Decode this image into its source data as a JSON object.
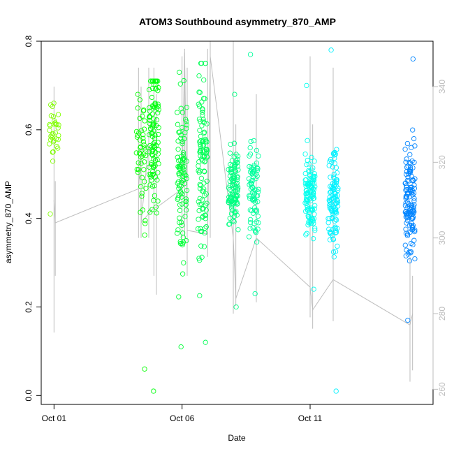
{
  "chart_data": {
    "type": "scatter",
    "title": "ATOM3 Southbound asymmetry_870_AMP",
    "xlabel": "Date",
    "ylabel": "asymmetry_870_AMP",
    "x_ticks": [
      "Oct 01",
      "Oct 06",
      "Oct 11"
    ],
    "x_tick_days": [
      1,
      6,
      11
    ],
    "xlim_days": [
      0.5,
      15.8
    ],
    "ylim": [
      -0.02,
      0.8
    ],
    "y_ticks": [
      0.0,
      0.2,
      0.4,
      0.6,
      0.8
    ],
    "y2_ticks": [
      260,
      280,
      300,
      320,
      340
    ],
    "y2lim": [
      256,
      352
    ],
    "grid": false,
    "legend": "none",
    "colors": {
      "points": [
        "#7fff00",
        "#00ff7f",
        "#00bfff",
        "#0080ff"
      ],
      "secondary_line": "#bebebe",
      "axis": "#000000",
      "right_axis": "#bdbdbd"
    },
    "sessions": [
      {
        "day": 1.0,
        "center": 0.6,
        "spread": 0.05,
        "min": 0.41,
        "max": 0.66,
        "n": 35
      },
      {
        "day": 4.4,
        "center": 0.52,
        "spread": 0.15,
        "min": 0.06,
        "max": 0.68,
        "n": 50
      },
      {
        "day": 4.9,
        "center": 0.58,
        "spread": 0.14,
        "min": 0.01,
        "max": 0.71,
        "n": 110
      },
      {
        "day": 6.0,
        "center": 0.5,
        "spread": 0.18,
        "min": 0.11,
        "max": 0.73,
        "n": 100
      },
      {
        "day": 6.8,
        "center": 0.52,
        "spread": 0.18,
        "min": 0.12,
        "max": 0.75,
        "n": 110
      },
      {
        "day": 8.0,
        "center": 0.48,
        "spread": 0.08,
        "min": 0.2,
        "max": 0.68,
        "n": 110
      },
      {
        "day": 8.8,
        "center": 0.46,
        "spread": 0.09,
        "min": 0.23,
        "max": 0.77,
        "n": 80
      },
      {
        "day": 11.0,
        "center": 0.45,
        "spread": 0.08,
        "min": 0.24,
        "max": 0.7,
        "n": 110
      },
      {
        "day": 11.9,
        "center": 0.44,
        "spread": 0.09,
        "min": 0.01,
        "max": 0.78,
        "n": 110
      },
      {
        "day": 14.9,
        "center": 0.44,
        "spread": 0.12,
        "min": 0.17,
        "max": 0.76,
        "n": 130
      }
    ],
    "secondary_series": [
      {
        "day": 1.0,
        "y": 310,
        "lo": 275,
        "hi": 340
      },
      {
        "day": 1.05,
        "y": 304,
        "lo": 290,
        "hi": 315
      },
      {
        "day": 4.3,
        "y": 313,
        "lo": 300,
        "hi": 345
      },
      {
        "day": 4.4,
        "y": 322,
        "lo": 300,
        "hi": 340
      },
      {
        "day": 4.7,
        "y": 325,
        "lo": 300,
        "hi": 345
      },
      {
        "day": 4.4,
        "y": 304,
        "lo": 300,
        "hi": 320
      },
      {
        "day": 4.9,
        "y": 308,
        "lo": 290,
        "hi": 345
      },
      {
        "day": 5.0,
        "y": 308,
        "lo": 285,
        "hi": 338
      },
      {
        "day": 6.0,
        "y": 313,
        "lo": 300,
        "hi": 348
      },
      {
        "day": 6.1,
        "y": 349,
        "lo": 300,
        "hi": 350
      },
      {
        "day": 6.2,
        "y": 302,
        "lo": 290,
        "hi": 345
      },
      {
        "day": 7.0,
        "y": 301,
        "lo": 295,
        "hi": 350
      },
      {
        "day": 7.1,
        "y": 348,
        "lo": 300,
        "hi": 352
      },
      {
        "day": 8.0,
        "y": 300,
        "lo": 280,
        "hi": 352
      },
      {
        "day": 8.1,
        "y": 284,
        "lo": 282,
        "hi": 330
      },
      {
        "day": 8.9,
        "y": 300,
        "lo": 283,
        "hi": 338
      },
      {
        "day": 11.0,
        "y": 287,
        "lo": 279,
        "hi": 348
      },
      {
        "day": 11.1,
        "y": 281,
        "lo": 276,
        "hi": 330
      },
      {
        "day": 11.9,
        "y": 289,
        "lo": 278,
        "hi": 345
      },
      {
        "day": 14.9,
        "y": 277,
        "lo": 262,
        "hi": 295
      },
      {
        "day": 15.0,
        "y": 280,
        "lo": 265,
        "hi": 290
      }
    ]
  }
}
